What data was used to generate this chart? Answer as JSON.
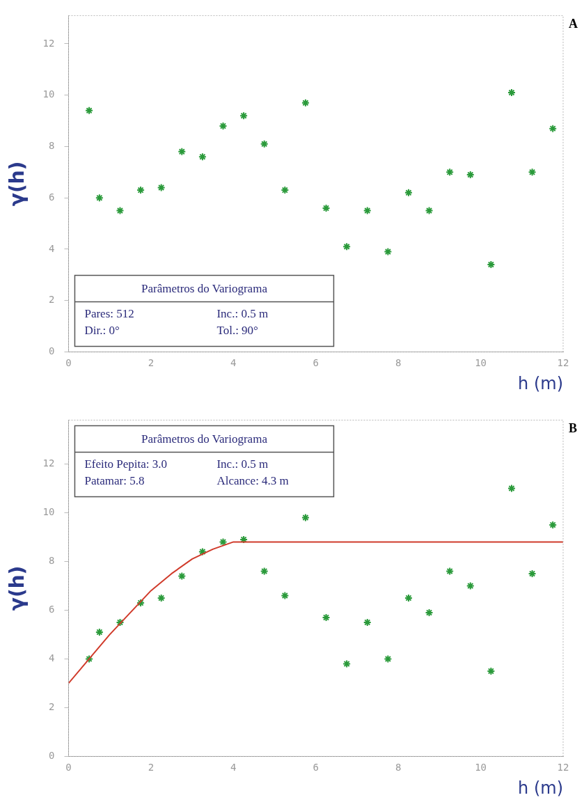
{
  "chart_data": [
    {
      "type": "scatter",
      "title": "A",
      "xlabel": "h (m)",
      "ylabel": "γ(h)",
      "xlim": [
        0,
        12
      ],
      "ylim": [
        0,
        13.1
      ],
      "xticks": [
        0,
        2,
        4,
        6,
        8,
        10,
        12
      ],
      "yticks": [
        0,
        2,
        4,
        6,
        8,
        10,
        12
      ],
      "marker": "cross",
      "annotations": [
        "Parâmetros do Variograma",
        "Pares: 512",
        "Inc.: 0.5 m",
        "Dir.: 0°",
        "Tol.: 90°"
      ],
      "series": [
        {
          "color": "#2a9a3a",
          "x": [
            0.5,
            0.75,
            1.25,
            1.75,
            2.25,
            2.75,
            3.25,
            3.75,
            4.25,
            4.75,
            5.25,
            5.75,
            6.25,
            6.75,
            7.25,
            7.75,
            8.25,
            8.75,
            9.25,
            9.75,
            10.25,
            10.75,
            11.25,
            11.75
          ],
          "values": [
            9.4,
            6.0,
            5.5,
            6.3,
            6.4,
            7.8,
            7.6,
            8.8,
            9.2,
            8.1,
            6.3,
            9.7,
            5.6,
            4.1,
            5.5,
            3.9,
            6.2,
            5.5,
            7.0,
            6.9,
            3.4,
            10.1,
            7.0,
            8.7
          ]
        }
      ]
    },
    {
      "type": "scatter",
      "title": "B",
      "xlabel": "h (m)",
      "ylabel": "γ(h)",
      "xlim": [
        0,
        12
      ],
      "ylim": [
        0,
        13.8
      ],
      "xticks": [
        0,
        2,
        4,
        6,
        8,
        10,
        12
      ],
      "yticks": [
        0,
        2,
        4,
        6,
        8,
        10,
        12
      ],
      "marker": "cross",
      "annotations": [
        "Parâmetros do Variograma",
        "Efeito Pepita: 3.0",
        "Inc.: 0.5 m",
        "Patamar: 5.8",
        "Alcance: 4.3 m"
      ],
      "series": [
        {
          "type": "line",
          "color": "#d03a2a",
          "marker": "none",
          "x": [
            0,
            0.5,
            1,
            1.5,
            2,
            2.5,
            3,
            3.5,
            4,
            4.3,
            12
          ],
          "values": [
            3.0,
            4.0,
            5.0,
            5.9,
            6.8,
            7.5,
            8.1,
            8.5,
            8.8,
            8.8,
            8.8
          ]
        },
        {
          "color": "#2a9a3a",
          "x": [
            0.5,
            0.75,
            1.25,
            1.75,
            2.25,
            2.75,
            3.25,
            3.75,
            4.25,
            4.75,
            5.25,
            5.75,
            6.25,
            6.75,
            7.25,
            7.75,
            8.25,
            8.75,
            9.25,
            9.75,
            10.25,
            10.75,
            11.25,
            11.75
          ],
          "values": [
            4.0,
            5.1,
            5.5,
            6.3,
            6.5,
            7.4,
            8.4,
            8.8,
            8.9,
            7.6,
            6.6,
            9.8,
            5.7,
            3.8,
            5.5,
            4.0,
            6.5,
            5.9,
            7.6,
            7.0,
            3.5,
            11.0,
            7.5,
            9.5
          ]
        }
      ]
    }
  ]
}
